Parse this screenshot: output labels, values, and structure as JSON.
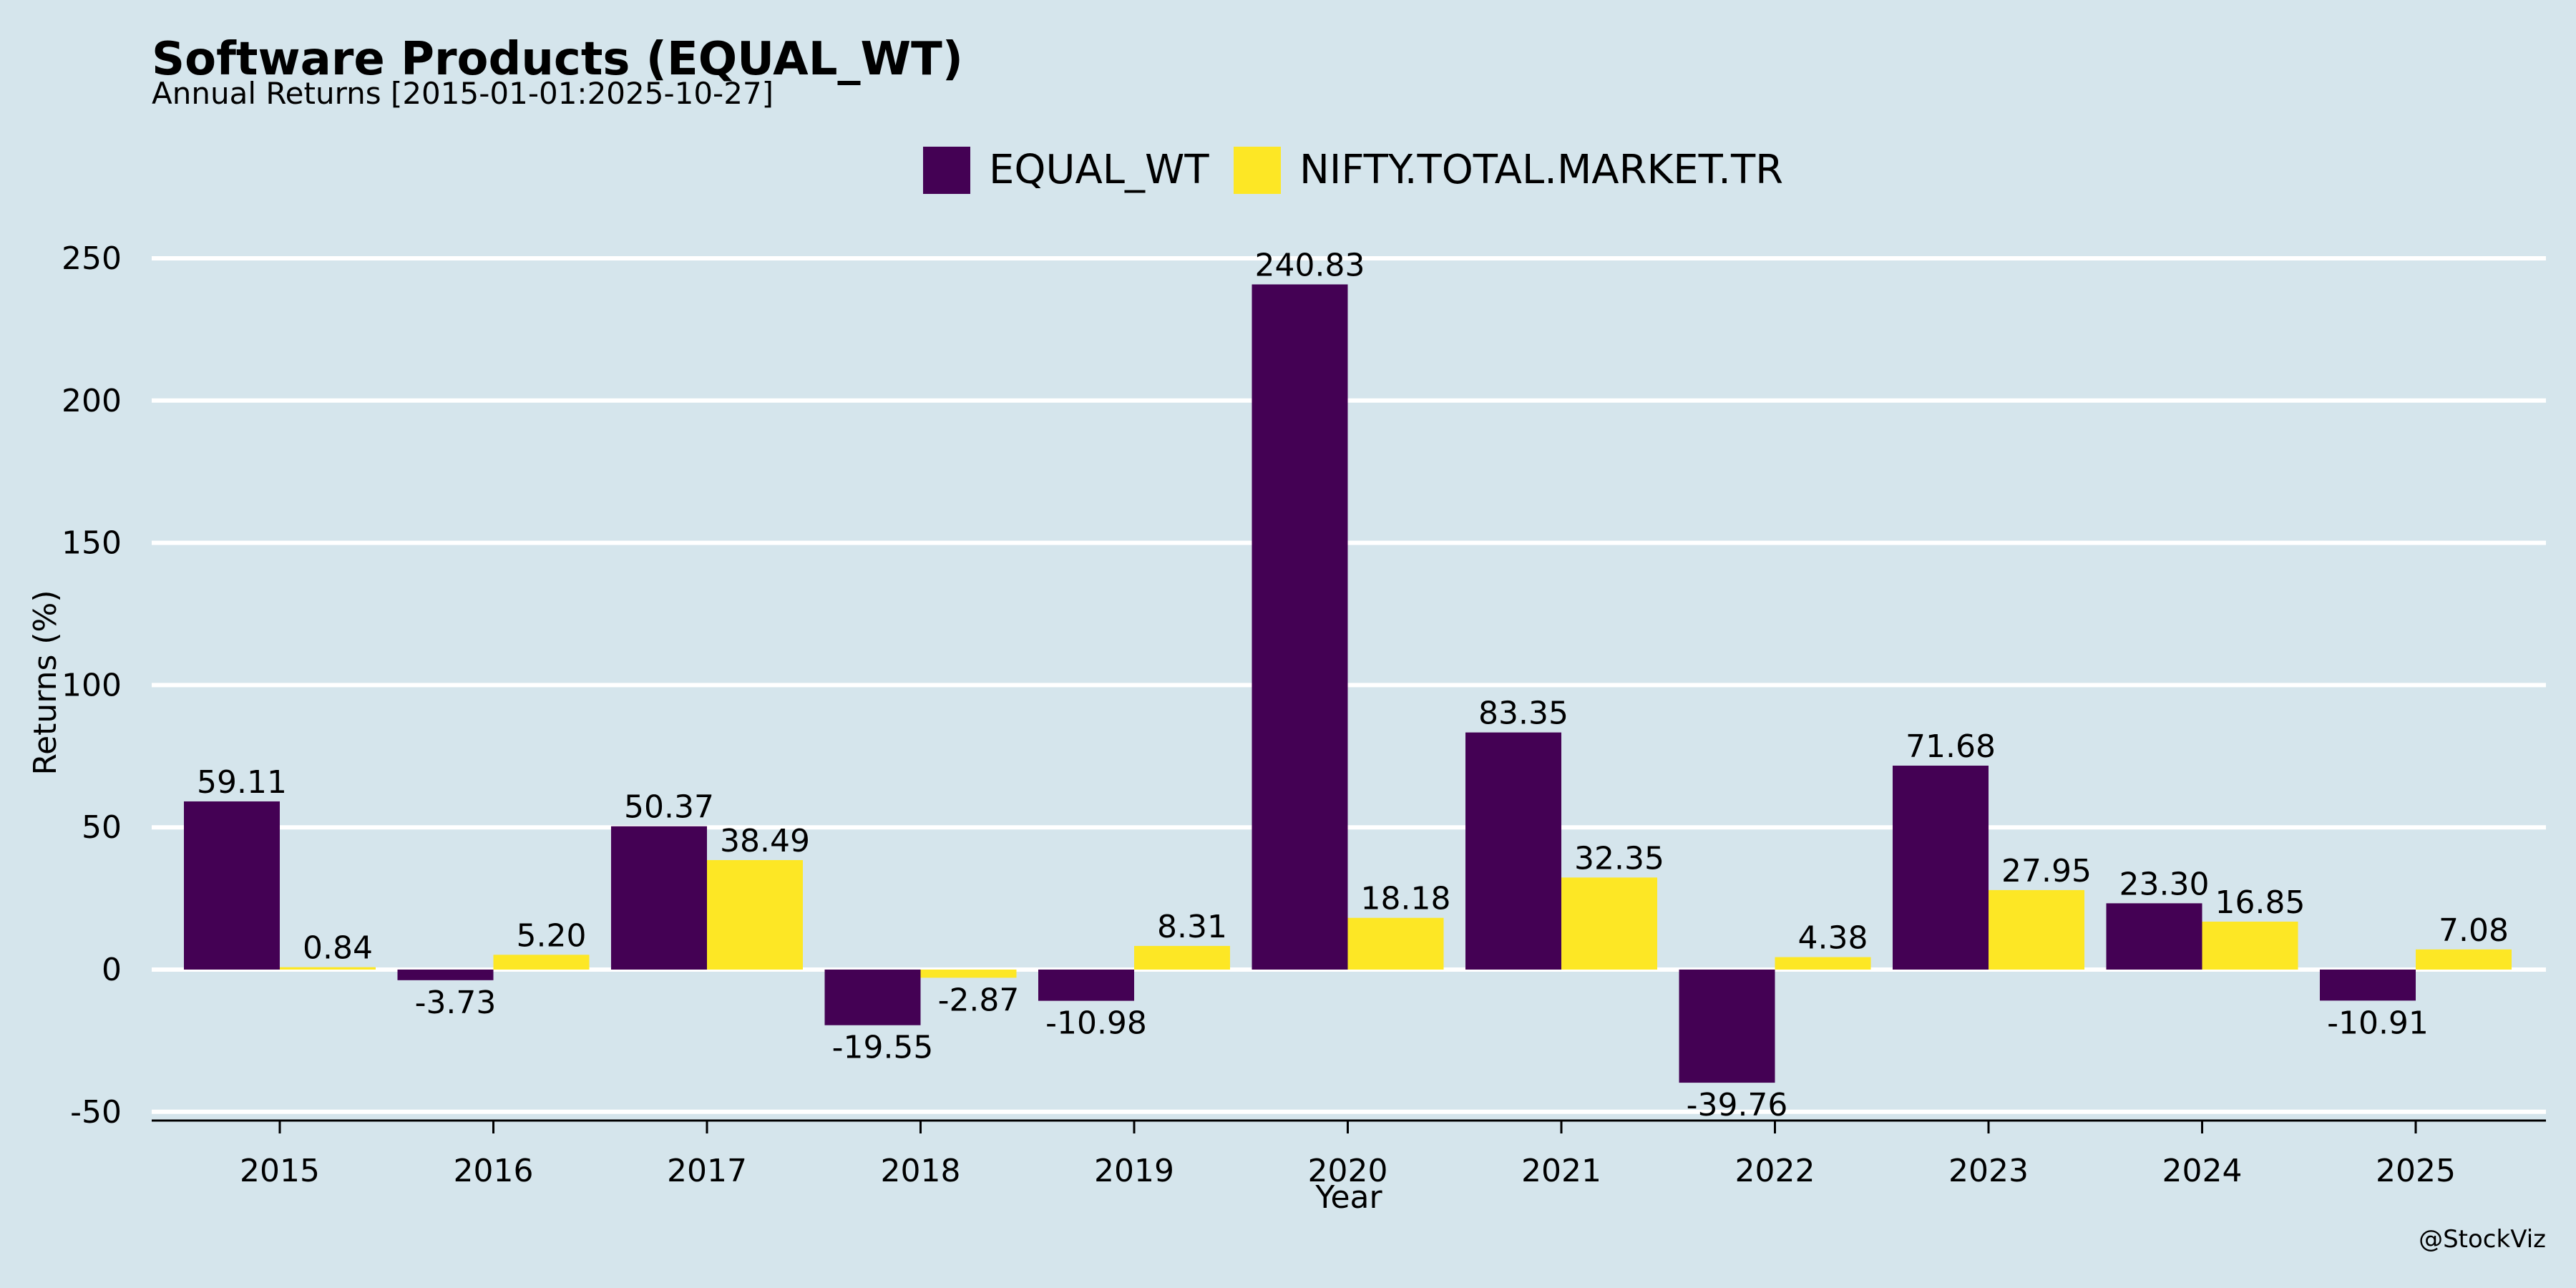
{
  "chart_data": {
    "type": "bar",
    "title": "Software Products (EQUAL_WT)",
    "subtitle": "Annual Returns [2015-01-01:2025-10-27]",
    "xlabel": "Year",
    "ylabel": "Returns (%)",
    "categories": [
      "2015",
      "2016",
      "2017",
      "2018",
      "2019",
      "2020",
      "2021",
      "2022",
      "2023",
      "2024",
      "2025"
    ],
    "series": [
      {
        "name": "EQUAL_WT",
        "color": "#440154",
        "values": [
          59.11,
          -3.73,
          50.37,
          -19.55,
          -10.98,
          240.83,
          83.35,
          -39.76,
          71.68,
          23.3,
          -10.91
        ],
        "labels": [
          "59.11",
          "-3.73",
          "50.37",
          "-19.55",
          "-10.98",
          "240.83",
          "83.35",
          "-39.76",
          "71.68",
          "23.30",
          "-10.91"
        ]
      },
      {
        "name": "NIFTY.TOTAL.MARKET.TR",
        "color": "#fde725",
        "values": [
          0.84,
          5.2,
          38.49,
          -2.87,
          8.31,
          18.18,
          32.35,
          4.38,
          27.95,
          16.85,
          7.08
        ],
        "labels": [
          "0.84",
          "5.20",
          "38.49",
          "-2.87",
          "8.31",
          "18.18",
          "32.35",
          "4.38",
          "27.95",
          "16.85",
          "7.08"
        ]
      }
    ],
    "yticks": [
      -50,
      0,
      50,
      100,
      150,
      200,
      250
    ],
    "ytick_labels": [
      "-50",
      "0",
      "50",
      "100",
      "150",
      "200",
      "250"
    ],
    "ylim": [
      -52,
      262
    ],
    "grid": "horizontal",
    "legend_position": "top-center",
    "credit": "@StockViz"
  }
}
